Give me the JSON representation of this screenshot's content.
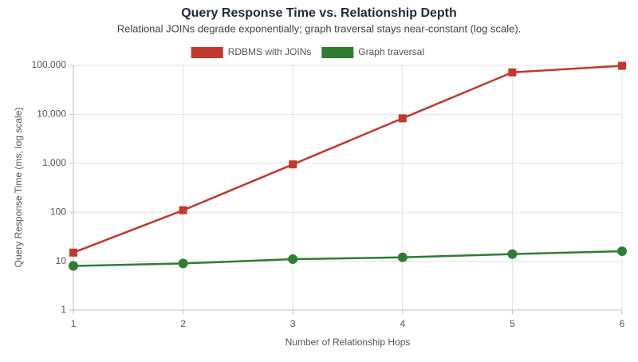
{
  "chart_data": {
    "type": "line",
    "title": "Query Response Time vs. Relationship Depth",
    "subtitle": "Relational JOINs degrade exponentially; graph traversal stays near-constant (log scale).",
    "x_label": "Number of Relationship Hops",
    "y_label": "Query Response Time (ms, log scale)",
    "x": [
      1,
      2,
      3,
      4,
      5,
      6
    ],
    "series": [
      {
        "name": "RDBMS with JOINs",
        "color": "#c0392b",
        "marker": "square",
        "values": [
          15,
          110,
          950,
          8300,
          72000,
          98000
        ]
      },
      {
        "name": "Graph traversal",
        "color": "#2e7d32",
        "marker": "circle",
        "values": [
          8,
          9,
          11,
          12,
          14,
          16
        ]
      }
    ],
    "xlim": [
      1,
      6
    ],
    "xticks": [
      1,
      2,
      3,
      4,
      5,
      6
    ],
    "ylim": [
      1,
      100000
    ],
    "yticks": [
      1,
      10,
      100,
      {
        "value": 1000,
        "label": "1,000"
      },
      {
        "value": 10000,
        "label": "10,000"
      },
      {
        "value": 100000,
        "label": "100,000"
      }
    ],
    "yscale": "log",
    "grid": true,
    "legend": "top"
  }
}
